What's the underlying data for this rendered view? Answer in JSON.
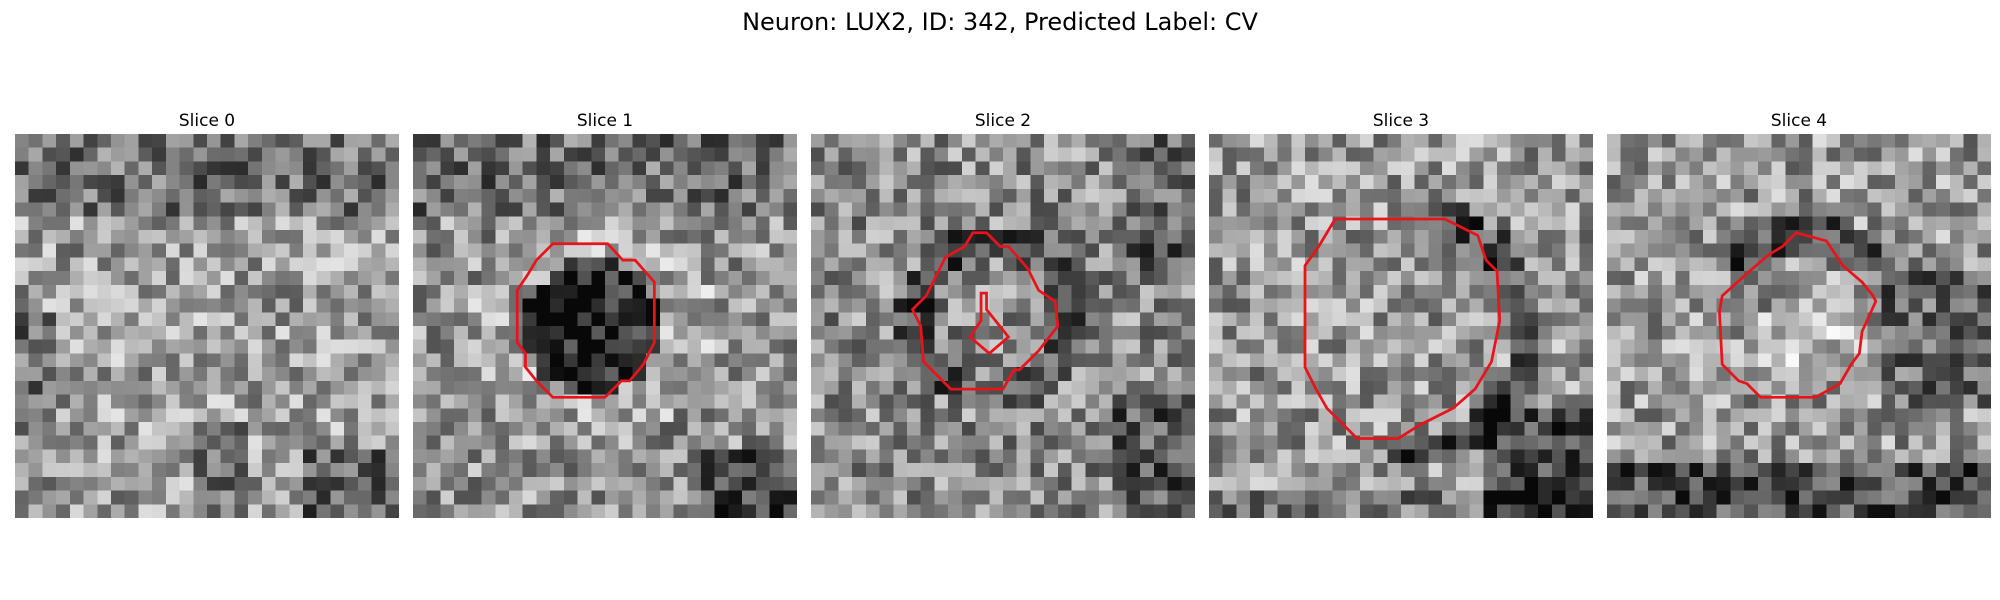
{
  "figure": {
    "title": "Neuron: LUX2, ID: 342, Predicted Label: CV"
  },
  "contour_color": "#e8141b",
  "slices": [
    {
      "title": "Slice 0",
      "has_contour": false,
      "brightness": 0.62,
      "seed": 11
    },
    {
      "title": "Slice 1",
      "has_contour": true,
      "brightness": 0.58,
      "seed": 23
    },
    {
      "title": "Slice 2",
      "has_contour": true,
      "brightness": 0.55,
      "seed": 37
    },
    {
      "title": "Slice 3",
      "has_contour": true,
      "brightness": 0.6,
      "seed": 51
    },
    {
      "title": "Slice 4",
      "has_contour": true,
      "brightness": 0.6,
      "seed": 67
    }
  ]
}
